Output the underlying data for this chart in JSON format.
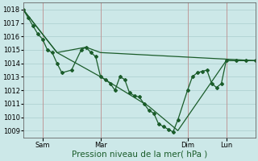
{
  "title": "",
  "xlabel": "Pression niveau de la mer( hPa )",
  "ylabel": "",
  "bg_color": "#cce8e8",
  "grid_color": "#aacece",
  "vline_color": "#c09090",
  "line_color": "#1a5c2a",
  "ylim": [
    1008.5,
    1018.5
  ],
  "yticks": [
    1009,
    1010,
    1011,
    1012,
    1013,
    1014,
    1015,
    1016,
    1017,
    1018
  ],
  "xlim": [
    0,
    192
  ],
  "xtick_positions": [
    16,
    64,
    136,
    168
  ],
  "xtick_labels": [
    "Sam",
    "Mar",
    "Dim",
    "Lun"
  ],
  "vline_positions": [
    16,
    64,
    136,
    168
  ],
  "line1_x": [
    0,
    4,
    8,
    12,
    16,
    20,
    24,
    28,
    32,
    40,
    48,
    52,
    56,
    60,
    64,
    68,
    72,
    76,
    80,
    84,
    88,
    92,
    96,
    100,
    104,
    108,
    112,
    116,
    120,
    124,
    128,
    136,
    140,
    144,
    148,
    152,
    156,
    160,
    164,
    168,
    176,
    184,
    192
  ],
  "line1_y": [
    1018.0,
    1017.4,
    1016.8,
    1016.2,
    1015.8,
    1015.0,
    1014.8,
    1014.0,
    1013.3,
    1013.5,
    1015.0,
    1015.2,
    1014.8,
    1014.5,
    1013.0,
    1012.8,
    1012.5,
    1012.0,
    1013.0,
    1012.8,
    1011.8,
    1011.6,
    1011.5,
    1011.0,
    1010.5,
    1010.3,
    1009.5,
    1009.3,
    1009.1,
    1008.9,
    1009.8,
    1012.0,
    1013.0,
    1013.3,
    1013.4,
    1013.5,
    1012.5,
    1012.2,
    1012.5,
    1014.2,
    1014.2,
    1014.2,
    1014.2
  ],
  "line2_x": [
    0,
    28,
    52,
    64,
    192
  ],
  "line2_y": [
    1018.0,
    1014.8,
    1015.2,
    1014.8,
    1014.2
  ],
  "line3_x": [
    0,
    28,
    64,
    104,
    128,
    168,
    192
  ],
  "line3_y": [
    1018.0,
    1014.8,
    1013.0,
    1010.8,
    1009.0,
    1014.2,
    1014.2
  ],
  "marker": "D",
  "marker_size": 2.0,
  "line_width": 0.9,
  "xlabel_fontsize": 7.5,
  "tick_fontsize": 6.0
}
